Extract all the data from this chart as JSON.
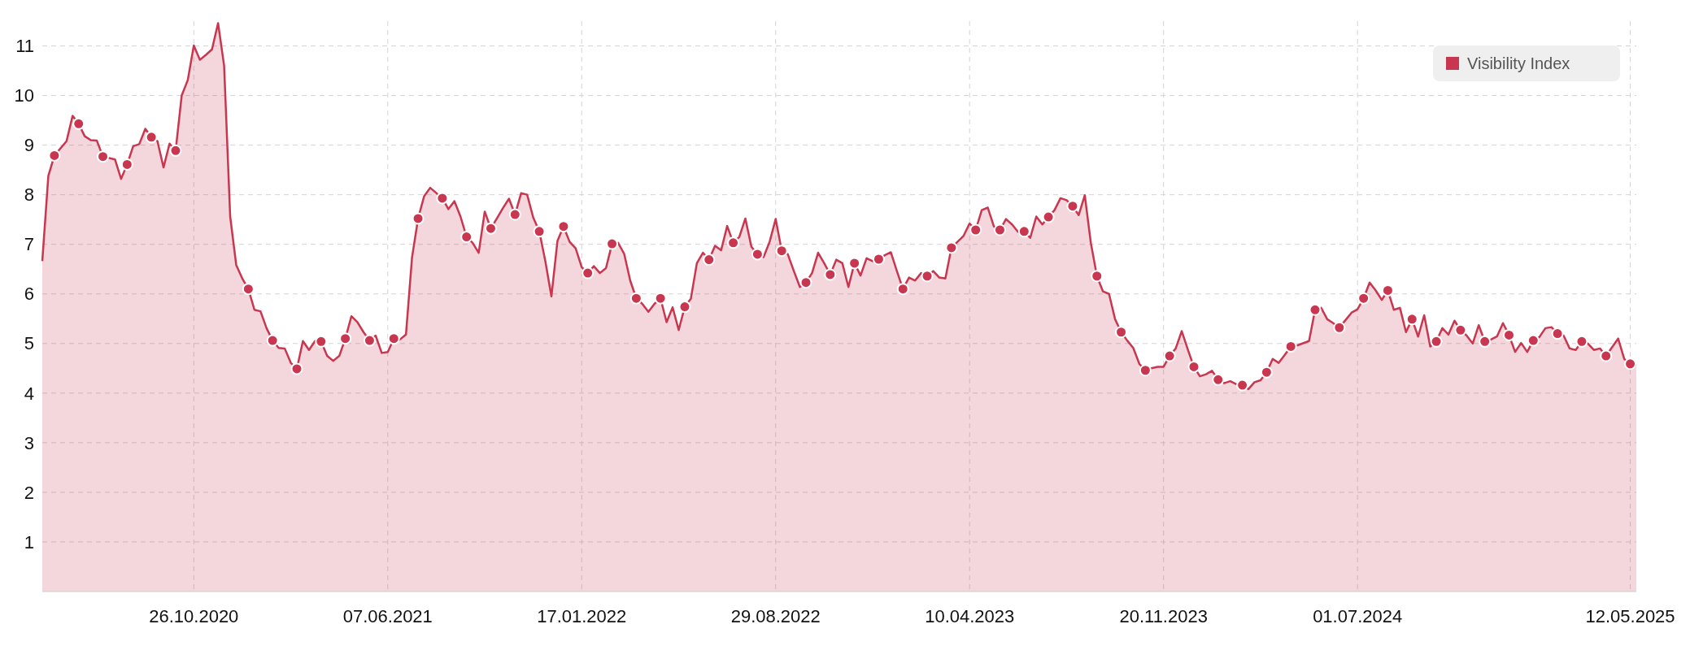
{
  "chart_data": {
    "type": "area",
    "xlim": [
      "2020-05-04",
      "2025-05-19"
    ],
    "ylim": [
      0,
      11.5
    ],
    "yticks": [
      1,
      2,
      3,
      4,
      5,
      6,
      7,
      8,
      9,
      10,
      11
    ],
    "xticks": [
      {
        "value": "2020-10-26",
        "label": "26.10.2020"
      },
      {
        "value": "2021-06-07",
        "label": "07.06.2021"
      },
      {
        "value": "2022-01-17",
        "label": "17.01.2022"
      },
      {
        "value": "2022-08-29",
        "label": "29.08.2022"
      },
      {
        "value": "2023-04-10",
        "label": "10.04.2023"
      },
      {
        "value": "2023-11-20",
        "label": "20.11.2023"
      },
      {
        "value": "2024-07-01",
        "label": "01.07.2024"
      },
      {
        "value": "2025-05-12",
        "label": "12.05.2025"
      }
    ],
    "grid": true,
    "legend": "top right",
    "line_style": "solid",
    "series": [
      {
        "name": "Visibility Index",
        "color": "#c8374f",
        "marker": "none",
        "x": [
          "2020-05-04",
          "2020-05-11",
          "2020-05-18",
          "2020-06-01",
          "2020-06-08",
          "2020-06-15",
          "2020-06-22",
          "2020-06-29",
          "2020-07-06",
          "2020-07-13",
          "2020-07-27",
          "2020-08-03",
          "2020-08-10",
          "2020-08-17",
          "2020-08-24",
          "2020-08-31",
          "2020-09-07",
          "2020-09-14",
          "2020-09-21",
          "2020-09-28",
          "2020-10-05",
          "2020-10-12",
          "2020-10-19",
          "2020-10-26",
          "2020-11-02",
          "2020-11-09",
          "2020-11-16",
          "2020-11-23",
          "2020-11-30",
          "2020-12-07",
          "2020-12-14",
          "2020-12-21",
          "2020-12-28",
          "2021-01-04",
          "2021-01-11",
          "2021-01-18",
          "2021-01-25",
          "2021-02-01",
          "2021-02-08",
          "2021-02-15",
          "2021-02-22",
          "2021-03-01",
          "2021-03-08",
          "2021-03-15",
          "2021-03-22",
          "2021-03-29",
          "2021-04-05",
          "2021-04-12",
          "2021-04-19",
          "2021-04-26",
          "2021-05-03",
          "2021-05-10",
          "2021-05-17",
          "2021-05-24",
          "2021-05-31",
          "2021-06-07",
          "2021-06-14",
          "2021-06-21",
          "2021-06-28",
          "2021-07-05",
          "2021-07-12",
          "2021-07-19",
          "2021-07-26",
          "2021-08-09",
          "2021-08-16",
          "2021-08-23",
          "2021-08-30",
          "2021-09-06",
          "2021-09-13",
          "2021-09-20",
          "2021-09-27",
          "2021-10-04",
          "2021-10-11",
          "2021-10-18",
          "2021-10-25",
          "2021-11-01",
          "2021-11-08",
          "2021-11-15",
          "2021-11-22",
          "2021-11-29",
          "2021-12-06",
          "2021-12-13",
          "2021-12-20",
          "2021-12-27",
          "2022-01-03",
          "2022-01-10",
          "2022-01-17",
          "2022-01-24",
          "2022-01-31",
          "2022-02-07",
          "2022-02-14",
          "2022-02-21",
          "2022-02-28",
          "2022-03-07",
          "2022-03-14",
          "2022-03-21",
          "2022-03-28",
          "2022-04-04",
          "2022-04-11",
          "2022-04-18",
          "2022-04-25",
          "2022-05-02",
          "2022-05-09",
          "2022-05-16",
          "2022-05-23",
          "2022-05-30",
          "2022-06-06",
          "2022-06-13",
          "2022-06-20",
          "2022-06-27",
          "2022-07-04",
          "2022-07-11",
          "2022-07-18",
          "2022-07-25",
          "2022-08-01",
          "2022-08-08",
          "2022-08-15",
          "2022-08-22",
          "2022-08-29",
          "2022-09-05",
          "2022-09-12",
          "2022-09-19",
          "2022-09-26",
          "2022-10-03",
          "2022-10-10",
          "2022-10-17",
          "2022-10-24",
          "2022-10-31",
          "2022-11-07",
          "2022-11-14",
          "2022-11-21",
          "2022-11-28",
          "2022-12-05",
          "2022-12-12",
          "2022-12-19",
          "2022-12-26",
          "2023-01-02",
          "2023-01-09",
          "2023-01-16",
          "2023-01-23",
          "2023-01-30",
          "2023-02-06",
          "2023-02-13",
          "2023-02-20",
          "2023-02-27",
          "2023-03-06",
          "2023-03-13",
          "2023-03-20",
          "2023-03-27",
          "2023-04-03",
          "2023-04-10",
          "2023-04-17",
          "2023-04-24",
          "2023-05-01",
          "2023-05-08",
          "2023-05-15",
          "2023-05-22",
          "2023-05-29",
          "2023-06-05",
          "2023-06-12",
          "2023-06-19",
          "2023-06-26",
          "2023-07-03",
          "2023-07-10",
          "2023-07-17",
          "2023-07-24",
          "2023-07-31",
          "2023-08-07",
          "2023-08-14",
          "2023-08-21",
          "2023-08-28",
          "2023-09-04",
          "2023-09-11",
          "2023-09-18",
          "2023-09-25",
          "2023-10-02",
          "2023-10-09",
          "2023-10-16",
          "2023-10-23",
          "2023-10-30",
          "2023-11-06",
          "2023-11-13",
          "2023-11-20",
          "2023-11-27",
          "2023-12-04",
          "2023-12-11",
          "2023-12-18",
          "2023-12-25",
          "2024-01-01",
          "2024-01-08",
          "2024-01-15",
          "2024-01-22",
          "2024-01-29",
          "2024-02-05",
          "2024-02-12",
          "2024-02-19",
          "2024-02-26",
          "2024-03-04",
          "2024-03-11",
          "2024-03-18",
          "2024-03-25",
          "2024-04-01",
          "2024-04-08",
          "2024-04-15",
          "2024-04-22",
          "2024-05-06",
          "2024-05-13",
          "2024-05-20",
          "2024-05-27",
          "2024-06-03",
          "2024-06-10",
          "2024-06-17",
          "2024-06-24",
          "2024-07-01",
          "2024-07-08",
          "2024-07-15",
          "2024-07-22",
          "2024-07-29",
          "2024-08-05",
          "2024-08-12",
          "2024-08-19",
          "2024-08-26",
          "2024-09-02",
          "2024-09-09",
          "2024-09-16",
          "2024-09-23",
          "2024-09-30",
          "2024-10-07",
          "2024-10-14",
          "2024-10-21",
          "2024-10-28",
          "2024-11-04",
          "2024-11-11",
          "2024-11-18",
          "2024-11-25",
          "2024-12-02",
          "2024-12-09",
          "2024-12-16",
          "2024-12-23",
          "2024-12-30",
          "2025-01-06",
          "2025-01-13",
          "2025-01-20",
          "2025-01-27",
          "2025-02-03",
          "2025-02-10",
          "2025-02-17",
          "2025-02-24",
          "2025-03-03",
          "2025-03-10",
          "2025-03-17",
          "2025-03-24",
          "2025-03-31",
          "2025-04-07",
          "2025-04-14",
          "2025-04-28",
          "2025-05-05",
          "2025-05-12",
          "2025-05-19"
        ],
        "values": [
          6.66,
          8.38,
          8.79,
          9.08,
          9.59,
          9.43,
          9.18,
          9.1,
          9.09,
          8.77,
          8.71,
          8.32,
          8.61,
          8.98,
          9.02,
          9.33,
          9.16,
          9.08,
          8.55,
          9.03,
          8.89,
          10.0,
          10.31,
          11.01,
          10.72,
          10.82,
          10.93,
          11.46,
          10.6,
          7.56,
          6.58,
          6.31,
          6.1,
          5.68,
          5.65,
          5.31,
          5.06,
          4.91,
          4.9,
          4.61,
          4.49,
          5.05,
          4.87,
          5.05,
          5.04,
          4.75,
          4.65,
          4.75,
          5.1,
          5.55,
          5.43,
          5.23,
          5.06,
          5.16,
          4.81,
          4.83,
          5.1,
          5.08,
          5.18,
          6.73,
          7.52,
          7.97,
          8.14,
          7.93,
          7.71,
          7.87,
          7.56,
          7.15,
          7.03,
          6.83,
          7.66,
          7.32,
          7.52,
          7.73,
          7.92,
          7.6,
          8.03,
          8.0,
          7.54,
          7.26,
          6.66,
          5.95,
          7.07,
          7.36,
          7.05,
          6.92,
          6.54,
          6.42,
          6.56,
          6.42,
          6.52,
          7.01,
          7.03,
          6.81,
          6.27,
          5.91,
          5.8,
          5.64,
          5.8,
          5.91,
          5.43,
          5.73,
          5.27,
          5.74,
          5.9,
          6.62,
          6.83,
          6.69,
          6.97,
          6.88,
          7.37,
          7.03,
          7.15,
          7.52,
          6.95,
          6.8,
          6.74,
          7.05,
          7.51,
          6.87,
          6.8,
          6.46,
          6.14,
          6.23,
          6.42,
          6.83,
          6.62,
          6.39,
          6.69,
          6.62,
          6.14,
          6.62,
          6.37,
          6.72,
          6.66,
          6.7,
          6.78,
          6.84,
          6.46,
          6.1,
          6.33,
          6.27,
          6.42,
          6.36,
          6.46,
          6.33,
          6.31,
          6.93,
          7.05,
          7.17,
          7.42,
          7.29,
          7.69,
          7.74,
          7.36,
          7.29,
          7.51,
          7.4,
          7.25,
          7.26,
          7.13,
          7.56,
          7.4,
          7.55,
          7.69,
          7.93,
          7.89,
          7.77,
          7.59,
          7.99,
          7.03,
          6.36,
          6.05,
          6.0,
          5.49,
          5.23,
          5.06,
          4.91,
          4.59,
          4.46,
          4.5,
          4.53,
          4.53,
          4.75,
          4.9,
          5.25,
          4.88,
          4.53,
          4.34,
          4.38,
          4.45,
          4.27,
          4.2,
          4.24,
          4.18,
          4.16,
          4.08,
          4.22,
          4.26,
          4.42,
          4.69,
          4.61,
          4.77,
          4.94,
          4.96,
          5.05,
          5.68,
          5.72,
          5.49,
          5.41,
          5.32,
          5.47,
          5.62,
          5.69,
          5.91,
          6.23,
          6.07,
          5.88,
          6.07,
          5.68,
          5.72,
          5.23,
          5.49,
          5.14,
          5.57,
          4.94,
          5.04,
          5.31,
          5.18,
          5.46,
          5.27,
          5.16,
          5.0,
          5.37,
          5.04,
          5.08,
          5.14,
          5.41,
          5.17,
          4.83,
          5.01,
          4.83,
          5.06,
          5.13,
          5.31,
          5.33,
          5.2,
          5.16,
          4.9,
          4.87,
          5.04,
          5.0,
          4.87,
          4.9,
          4.75,
          5.1,
          4.69,
          4.59,
          4.57
        ]
      },
      {
        "type": "scatter",
        "color": "#c8374f",
        "marker": "circle",
        "x": [
          "2020-05-18",
          "2020-06-15",
          "2020-07-13",
          "2020-08-10",
          "2020-09-07",
          "2020-10-05",
          "2020-12-28",
          "2021-01-25",
          "2021-02-22",
          "2021-03-22",
          "2021-04-19",
          "2021-05-17",
          "2021-06-14",
          "2021-07-12",
          "2021-08-09",
          "2021-09-06",
          "2021-10-04",
          "2021-11-01",
          "2021-11-29",
          "2021-12-27",
          "2022-01-24",
          "2022-02-21",
          "2022-03-21",
          "2022-04-18",
          "2022-05-16",
          "2022-06-13",
          "2022-07-11",
          "2022-08-08",
          "2022-09-05",
          "2022-10-03",
          "2022-10-31",
          "2022-11-28",
          "2022-12-26",
          "2023-01-23",
          "2023-02-20",
          "2023-03-20",
          "2023-04-17",
          "2023-05-15",
          "2023-06-12",
          "2023-07-10",
          "2023-08-07",
          "2023-09-04",
          "2023-10-02",
          "2023-10-30",
          "2023-11-27",
          "2023-12-25",
          "2024-01-22",
          "2024-02-19",
          "2024-03-18",
          "2024-04-15",
          "2024-05-13",
          "2024-06-10",
          "2024-07-08",
          "2024-08-05",
          "2024-09-02",
          "2024-09-30",
          "2024-10-28",
          "2024-11-25",
          "2024-12-23",
          "2025-01-20",
          "2025-02-17",
          "2025-03-17",
          "2025-04-14",
          "2025-05-12"
        ],
        "values": [
          8.79,
          9.43,
          8.77,
          8.61,
          9.16,
          8.89,
          6.1,
          5.06,
          4.49,
          5.04,
          5.1,
          5.06,
          5.1,
          7.52,
          7.93,
          7.15,
          7.32,
          7.6,
          7.26,
          7.36,
          6.42,
          7.01,
          5.91,
          5.91,
          5.74,
          6.69,
          7.03,
          6.8,
          6.87,
          6.23,
          6.39,
          6.62,
          6.7,
          6.1,
          6.36,
          6.93,
          7.29,
          7.29,
          7.26,
          7.55,
          7.77,
          6.36,
          5.23,
          4.46,
          4.75,
          4.53,
          4.27,
          4.16,
          4.42,
          4.94,
          5.68,
          5.32,
          5.91,
          6.07,
          5.49,
          5.04,
          5.27,
          5.04,
          5.17,
          5.06,
          5.2,
          5.04,
          4.75,
          4.59
        ]
      }
    ]
  }
}
